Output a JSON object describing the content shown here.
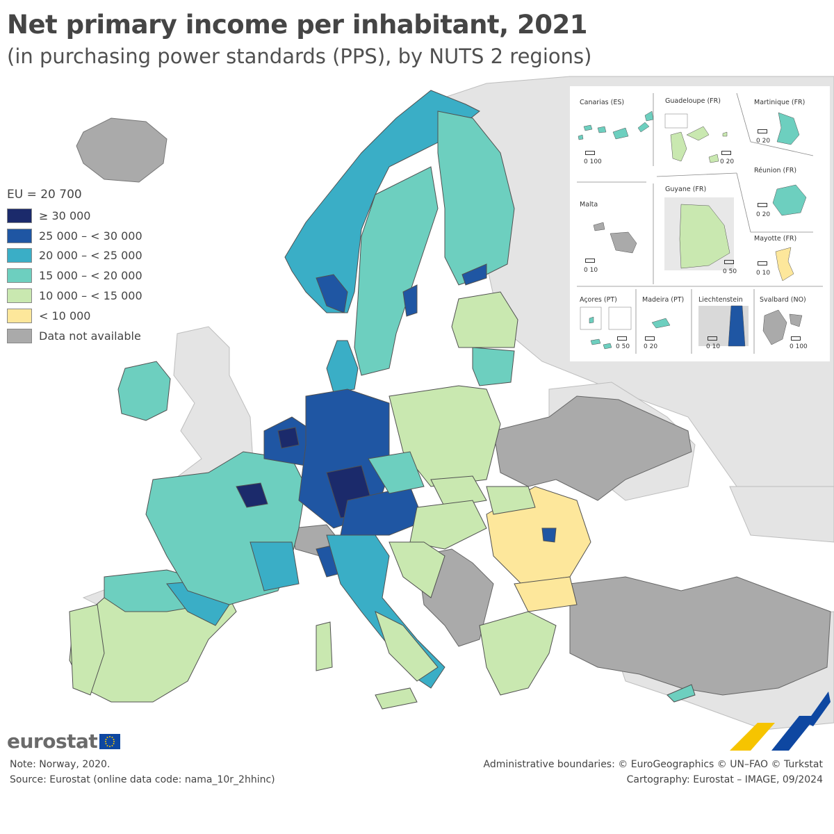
{
  "header": {
    "title": "Net primary income per inhabitant, 2021",
    "subtitle": "(in purchasing power standards (PPS), by NUTS 2 regions)"
  },
  "legend": {
    "heading": "EU = 20 700",
    "classes": [
      {
        "label": "≥ 30 000",
        "color": "#1b2a6b"
      },
      {
        "label": "25 000 – < 30 000",
        "color": "#1f56a3"
      },
      {
        "label": "20 000 – < 25 000",
        "color": "#3aaec6"
      },
      {
        "label": "15 000 – < 20 000",
        "color": "#6dcfbf"
      },
      {
        "label": "10 000 – < 15 000",
        "color": "#c9e8b0"
      },
      {
        "label": "< 10 000",
        "color": "#fde79b"
      },
      {
        "label": "Data not available",
        "color": "#aaaaaa"
      }
    ]
  },
  "insets": [
    {
      "name": "Canarias (ES)",
      "scale": "0   100"
    },
    {
      "name": "Guadeloupe (FR)",
      "scale": "0   20"
    },
    {
      "name": "Martinique (FR)",
      "scale": "0   20"
    },
    {
      "name": "Malta",
      "scale": "0   10"
    },
    {
      "name": "Guyane (FR)",
      "scale": "0  50"
    },
    {
      "name": "Réunion (FR)",
      "scale": "0   20"
    },
    {
      "name": "Mayotte (FR)",
      "scale": "0  10"
    },
    {
      "name": "Açores (PT)",
      "scale": "0   50"
    },
    {
      "name": "Madeira (PT)",
      "scale": "0  20"
    },
    {
      "name": "Liechtenstein",
      "scale": "0   10"
    },
    {
      "name": "Svalbard (NO)",
      "scale": "0 100"
    }
  ],
  "branding": {
    "logo_text": "eurostat"
  },
  "footer": {
    "note": "Note: Norway, 2020.",
    "source": "Source: Eurostat (online data code: nama_10r_2hhinc)",
    "boundaries": "Administrative boundaries: © EuroGeographics © UN–FAO © Turkstat",
    "cartography": "Cartography: Eurostat – IMAGE, 09/2024"
  },
  "colors": {
    "sea": "#ffffff",
    "non_eu_land": "#e4e4e4",
    "no_data": "#aaaaaa",
    "border": "#505050"
  }
}
